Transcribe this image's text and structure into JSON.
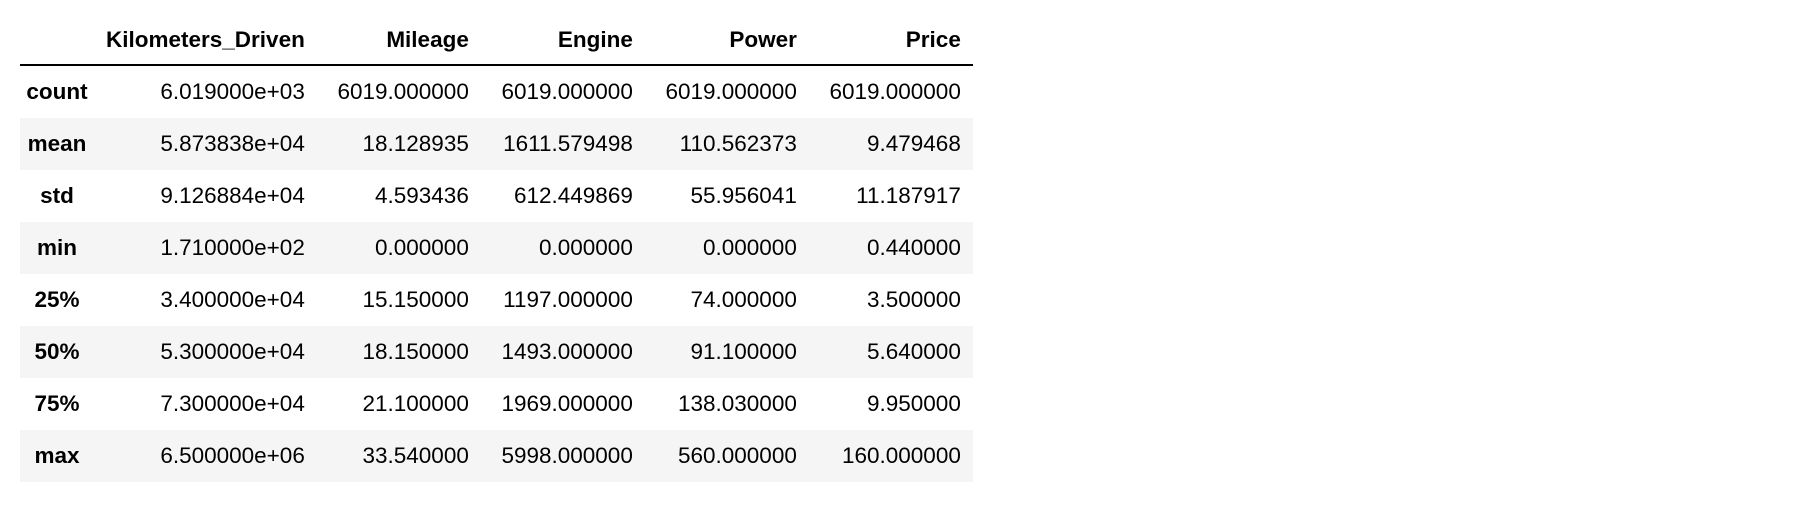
{
  "table": {
    "columns": [
      "Kilometers_Driven",
      "Mileage",
      "Engine",
      "Power",
      "Price"
    ],
    "rows": [
      {
        "label": "count",
        "values": [
          "6.019000e+03",
          "6019.000000",
          "6019.000000",
          "6019.000000",
          "6019.000000"
        ]
      },
      {
        "label": "mean",
        "values": [
          "5.873838e+04",
          "18.128935",
          "1611.579498",
          "110.562373",
          "9.479468"
        ]
      },
      {
        "label": "std",
        "values": [
          "9.126884e+04",
          "4.593436",
          "612.449869",
          "55.956041",
          "11.187917"
        ]
      },
      {
        "label": "min",
        "values": [
          "1.710000e+02",
          "0.000000",
          "0.000000",
          "0.000000",
          "0.440000"
        ]
      },
      {
        "label": "25%",
        "values": [
          "3.400000e+04",
          "15.150000",
          "1197.000000",
          "74.000000",
          "3.500000"
        ]
      },
      {
        "label": "50%",
        "values": [
          "5.300000e+04",
          "18.150000",
          "1493.000000",
          "91.100000",
          "5.640000"
        ]
      },
      {
        "label": "75%",
        "values": [
          "7.300000e+04",
          "21.100000",
          "1969.000000",
          "138.030000",
          "9.950000"
        ]
      },
      {
        "label": "max",
        "values": [
          "6.500000e+06",
          "33.540000",
          "5998.000000",
          "560.000000",
          "160.000000"
        ]
      }
    ]
  }
}
